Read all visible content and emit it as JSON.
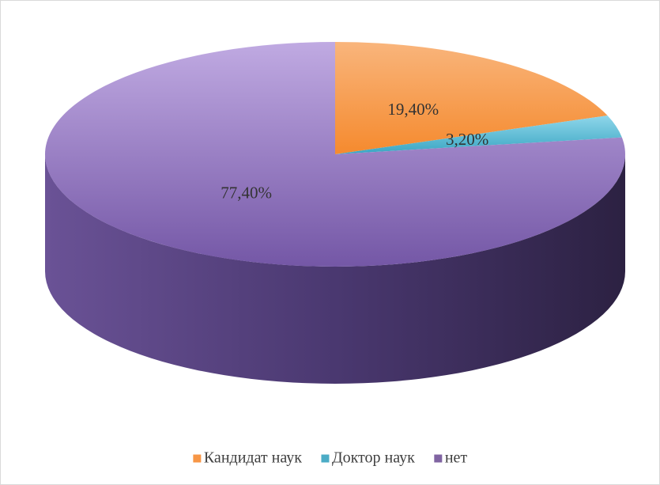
{
  "chart_data": {
    "type": "pie",
    "categories": [
      "Кандидат наук",
      "Доктор наук",
      "нет"
    ],
    "values": [
      19.4,
      3.2,
      77.4
    ],
    "value_labels": [
      "19,40%",
      "3,20%",
      "77,40%"
    ],
    "colors": [
      "#f79646",
      "#4bacc6",
      "#8064a2"
    ],
    "legend": "bottom"
  }
}
